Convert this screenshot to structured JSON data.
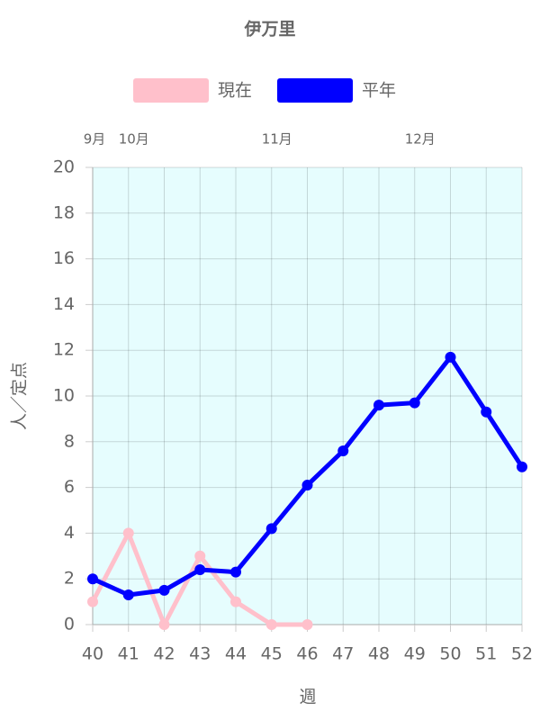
{
  "chart_data": {
    "type": "line",
    "title": "伊万里",
    "xlabel": "週",
    "ylabel": "人／定点",
    "x": [
      40,
      41,
      42,
      43,
      44,
      45,
      46,
      47,
      48,
      49,
      50,
      51,
      52
    ],
    "series": [
      {
        "name": "現在",
        "color": "#ffc0cb",
        "values": [
          1,
          4,
          0,
          3,
          1,
          0,
          0,
          null,
          null,
          null,
          null,
          null,
          null
        ]
      },
      {
        "name": "平年",
        "color": "#0000ff",
        "values": [
          2.0,
          1.3,
          1.5,
          2.4,
          2.3,
          4.2,
          6.1,
          7.6,
          9.6,
          9.7,
          11.7,
          9.3,
          6.9
        ]
      }
    ],
    "xlim": [
      40,
      52
    ],
    "xticks": [
      40,
      41,
      42,
      43,
      44,
      45,
      46,
      47,
      48,
      49,
      50,
      51,
      52
    ],
    "ylim": [
      0,
      20
    ],
    "yticks": [
      0,
      2,
      4,
      6,
      8,
      10,
      12,
      14,
      16,
      18,
      20
    ],
    "month_labels": [
      {
        "value": 40,
        "label": "9月"
      },
      {
        "value": 41,
        "label": "10月"
      },
      {
        "value": 45,
        "label": "11月"
      },
      {
        "value": 49,
        "label": "12月"
      }
    ],
    "grid": true,
    "plot_background": "#e6fdfe"
  }
}
